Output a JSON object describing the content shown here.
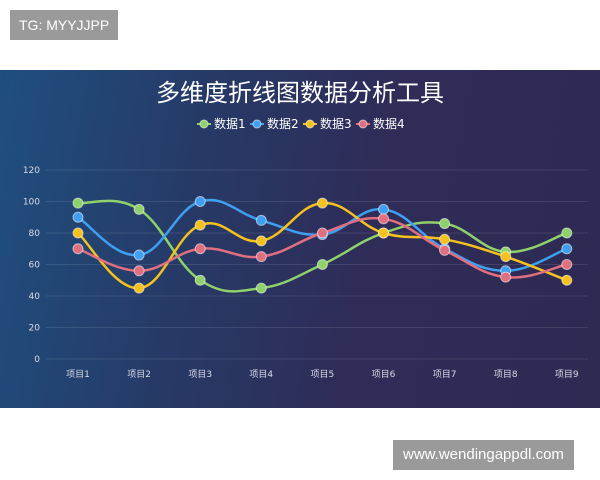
{
  "watermark_top": "TG: MYYJJPP",
  "watermark_bottom": "www.wendingappdl.com",
  "chart_data": {
    "type": "line",
    "title": "多维度折线图数据分析工具",
    "categories": [
      "项目1",
      "项目2",
      "项目3",
      "项目4",
      "项目5",
      "项目6",
      "项目7",
      "项目8",
      "项目9"
    ],
    "ylim": [
      0,
      120
    ],
    "yticks": [
      0,
      20,
      40,
      60,
      80,
      100,
      120
    ],
    "grid": true,
    "smooth": true,
    "legend_position": "top-center",
    "series": [
      {
        "name": "数据1",
        "color": "#8fd16a",
        "values": [
          99,
          95,
          50,
          45,
          60,
          80,
          86,
          68,
          80
        ]
      },
      {
        "name": "数据2",
        "color": "#3f9ff0",
        "values": [
          90,
          66,
          100,
          88,
          79,
          95,
          70,
          56,
          70
        ]
      },
      {
        "name": "数据3",
        "color": "#f5c21d",
        "values": [
          80,
          45,
          85,
          75,
          99,
          80,
          76,
          65,
          50
        ]
      },
      {
        "name": "数据4",
        "color": "#e06f7f",
        "values": [
          70,
          56,
          70,
          65,
          80,
          89,
          69,
          52,
          60
        ]
      }
    ]
  }
}
